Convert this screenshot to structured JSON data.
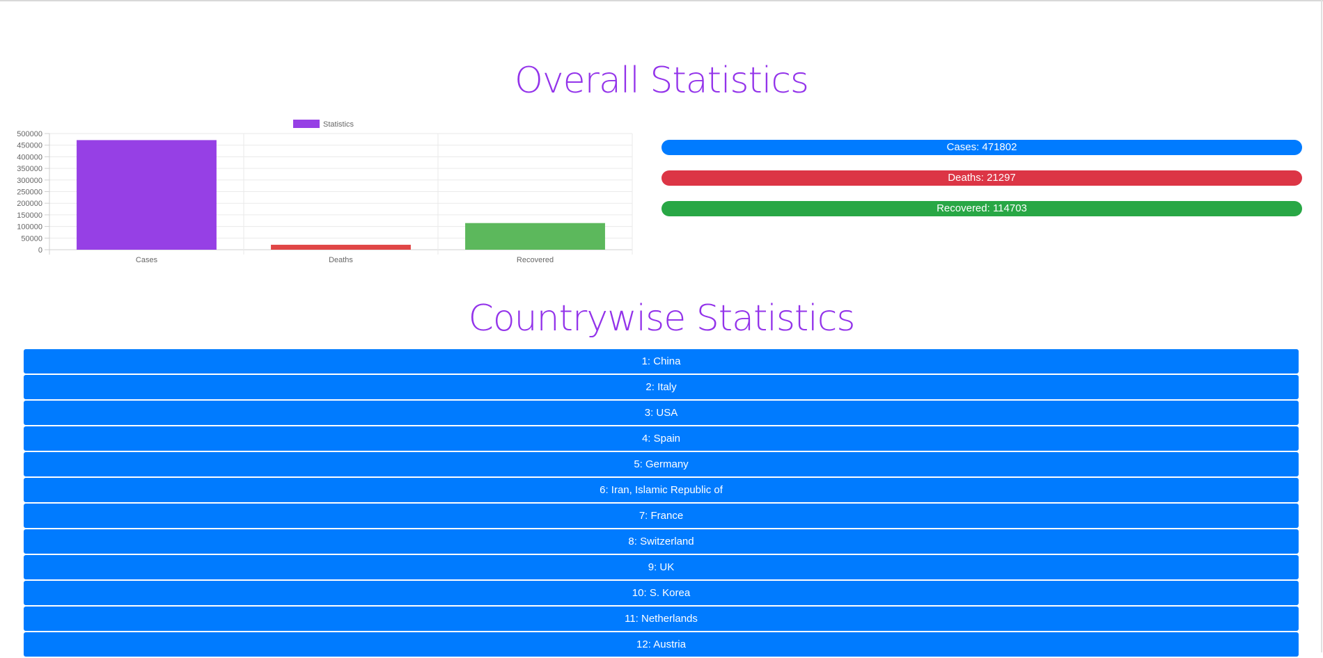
{
  "overall": {
    "title": "Overall Statistics",
    "cases_label": "Cases: 471802",
    "deaths_label": "Deaths: 21297",
    "recovered_label": "Recovered: 114703"
  },
  "countrywise": {
    "title": "Countrywise Statistics",
    "rows": [
      "1: China",
      "2: Italy",
      "3: USA",
      "4: Spain",
      "5: Germany",
      "6: Iran, Islamic Republic of",
      "7: France",
      "8: Switzerland",
      "9: UK",
      "10: S. Korea",
      "11: Netherlands",
      "12: Austria"
    ]
  },
  "colors": {
    "accent": "#9333ea",
    "cases": "#007bff",
    "deaths": "#dc3545",
    "recovered": "#28a745",
    "bar_cases": "#9640e5",
    "bar_deaths": "#e04646",
    "bar_recovered": "#5cb85c"
  },
  "chart_data": {
    "type": "bar",
    "categories": [
      "Cases",
      "Deaths",
      "Recovered"
    ],
    "series": [
      {
        "name": "Statistics",
        "values": [
          471802,
          21297,
          114703
        ]
      }
    ],
    "yticks": [
      0,
      50000,
      100000,
      150000,
      200000,
      250000,
      300000,
      350000,
      400000,
      450000,
      500000
    ],
    "ylim": [
      0,
      500000
    ],
    "legend": "top-center",
    "grid": true
  }
}
